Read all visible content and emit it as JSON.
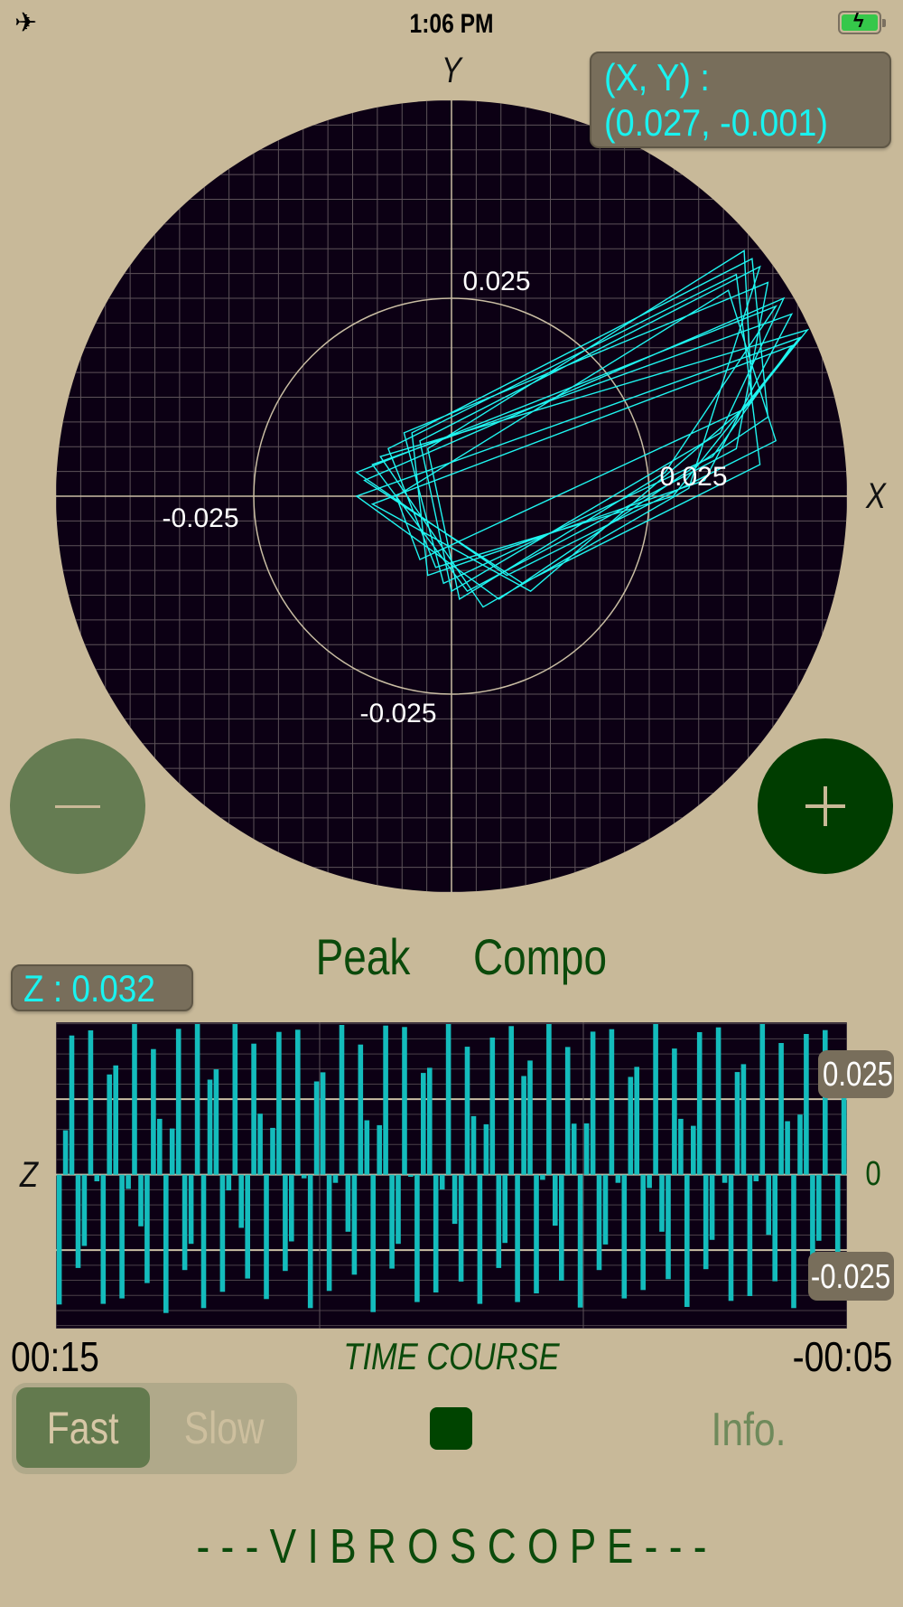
{
  "status_bar": {
    "time": "1:06 PM",
    "left_icon": "airplane-icon",
    "right_icon": "battery-charging-icon",
    "battery_color": "#35c84a"
  },
  "colors": {
    "background": "#c8b999",
    "scope_bg": "#0c0014",
    "trace": "#1ff5f0",
    "bars": "#14bcbc",
    "readout_box": "#786e5b",
    "readout_text": "#19f3f0",
    "dark_green": "#0b4a0b",
    "minus_button": "#657c52",
    "plus_button": "#003d00"
  },
  "scope": {
    "y_axis_label": "Y",
    "x_axis_label": "X",
    "ring_labels": {
      "top": "0.025",
      "right": "0.025",
      "left": "-0.025",
      "bottom": "-0.025"
    },
    "readout": {
      "line1": "(X, Y)  :",
      "line2": "(0.027, -0.001)"
    },
    "zoom_out_icon": "minus-icon",
    "zoom_in_icon": "plus-icon"
  },
  "modes": {
    "peak": "Peak",
    "compo": "Compo"
  },
  "z_readout": "Z : 0.032",
  "chart_data": [
    {
      "type": "scatter",
      "xlabel": "X",
      "ylabel": "Y",
      "ring_value": 0.025,
      "grid": true,
      "trace": [
        [
          0.04,
          0.027
        ],
        [
          0.036,
          0.006
        ],
        [
          0.002,
          -0.012
        ],
        [
          -0.01,
          0.004
        ],
        [
          0.043,
          0.023
        ],
        [
          0.032,
          0.002
        ],
        [
          -0.003,
          -0.01
        ],
        [
          -0.005,
          0.008
        ],
        [
          0.038,
          0.03
        ],
        [
          0.04,
          0.01
        ],
        [
          0.006,
          -0.013
        ],
        [
          -0.012,
          0.0
        ],
        [
          0.044,
          0.02
        ],
        [
          0.028,
          0.0
        ],
        [
          -0.002,
          -0.009
        ],
        [
          -0.008,
          0.006
        ],
        [
          0.036,
          0.028
        ],
        [
          0.039,
          0.004
        ],
        [
          0.009,
          -0.011
        ],
        [
          -0.011,
          0.002
        ],
        [
          0.042,
          0.025
        ],
        [
          0.034,
          0.008
        ],
        [
          0.0,
          -0.012
        ],
        [
          -0.004,
          0.007
        ],
        [
          0.039,
          0.029
        ],
        [
          0.03,
          0.001
        ],
        [
          0.004,
          -0.014
        ],
        [
          -0.009,
          0.005
        ],
        [
          0.045,
          0.021
        ],
        [
          0.037,
          0.011
        ],
        [
          -0.004,
          -0.008
        ],
        [
          -0.007,
          0.0
        ],
        [
          0.035,
          0.026
        ],
        [
          0.041,
          0.007
        ],
        [
          0.007,
          -0.01
        ],
        [
          -0.012,
          0.003
        ],
        [
          0.041,
          0.024
        ],
        [
          0.027,
          0.003
        ],
        [
          0.001,
          -0.013
        ],
        [
          -0.003,
          0.006
        ],
        [
          0.037,
          0.031
        ],
        [
          0.038,
          0.012
        ],
        [
          0.01,
          -0.012
        ],
        [
          -0.01,
          -0.001
        ],
        [
          0.043,
          0.019
        ],
        [
          0.033,
          0.005
        ],
        [
          -0.001,
          -0.011
        ],
        [
          -0.006,
          0.008
        ]
      ]
    },
    {
      "type": "bar",
      "title": "TIME COURSE",
      "ylabel": "Z",
      "x_start_label": "00:15",
      "x_end_label": "-00:05",
      "ytick_labels": {
        "upper": "0.025",
        "zero": "0",
        "lower": "-0.025"
      },
      "ylim": [
        -0.051,
        0.0505
      ],
      "grid": true,
      "values": [
        -0.043,
        0.0147,
        0.0461,
        -0.0309,
        -0.0236,
        0.0478,
        -0.0022,
        -0.0428,
        0.0332,
        0.0362,
        -0.041,
        -0.0047,
        0.0499,
        -0.0171,
        -0.0359,
        0.0416,
        0.0185,
        -0.0458,
        0.0153,
        0.0483,
        -0.0316,
        -0.0229,
        0.0499,
        -0.0442,
        0.0315,
        0.0349,
        -0.0388,
        -0.0052,
        0.0499,
        -0.0176,
        -0.0344,
        0.0434,
        0.0202,
        -0.0412,
        0.0155,
        0.0473,
        -0.0319,
        -0.0221,
        0.048,
        -0.0012,
        -0.0442,
        0.0309,
        0.0339,
        -0.0385,
        -0.0027,
        0.0496,
        -0.0189,
        -0.0331,
        0.0431,
        0.018,
        -0.0455,
        0.0164,
        0.0494,
        -0.0311,
        -0.0229,
        0.0489,
        -0.0007,
        -0.0422,
        0.0337,
        0.0354,
        -0.039,
        -0.0049,
        0.0499,
        -0.0163,
        -0.0354,
        0.0424,
        0.0194,
        -0.0428,
        0.0167,
        0.0454,
        -0.0309,
        -0.0226,
        0.0492,
        -0.0422,
        0.0327,
        0.0378,
        -0.0393,
        -0.0017,
        0.0499,
        -0.0169,
        -0.0351,
        0.0423,
        0.0169,
        -0.044,
        0.017,
        0.0474,
        -0.0316,
        -0.0231,
        0.0482,
        -0.0027,
        -0.041,
        0.0324,
        0.0357,
        -0.0382,
        -0.0044,
        0.0499,
        -0.0189,
        -0.0346,
        0.0418,
        0.0185,
        -0.0438,
        0.0162,
        0.0472,
        -0.0313,
        -0.0216,
        0.0488,
        -0.0027,
        -0.0418,
        0.034,
        0.0366,
        -0.0402,
        -0.0022,
        0.0499,
        -0.0199,
        -0.0353,
        0.0436,
        0.0177,
        -0.0442,
        0.0199,
        0.0466,
        -0.0311,
        -0.0219,
        0.0479,
        -0.0003,
        -0.0415,
        0.0322
      ]
    }
  ],
  "speed": {
    "fast": "Fast",
    "slow": "Slow",
    "selected": "Fast"
  },
  "stop_icon": "stop-icon",
  "info_label": "Info.",
  "app_title": "- - -  V I B R O S C O P E  - - -"
}
